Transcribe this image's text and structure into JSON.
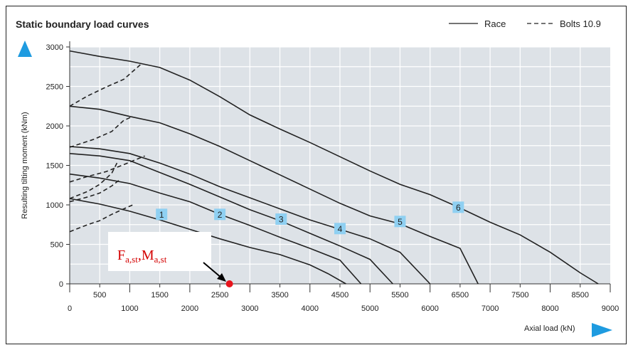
{
  "chart_data": {
    "type": "line",
    "title": "Static boundary load curves",
    "xlabel": "Axial load (kN)",
    "ylabel": "Resulting tilting moment (kNm)",
    "xlim": [
      0,
      9000
    ],
    "ylim": [
      0,
      3000
    ],
    "x_ticks_upper": [
      "500",
      "1500",
      "2500",
      "3500",
      "4500",
      "5500",
      "6500",
      "7500",
      "8500"
    ],
    "x_ticks_lower": [
      "0",
      "1000",
      "2000",
      "3000",
      "4000",
      "5000",
      "6000",
      "7000",
      "8000",
      "9000"
    ],
    "y_ticks": [
      "0",
      "500",
      "1000",
      "1500",
      "2000",
      "2500",
      "3000"
    ],
    "grid": true,
    "legend": {
      "position": "top-right",
      "items": [
        {
          "label": "Race",
          "style": "solid"
        },
        {
          "label": "Bolts 10.9",
          "style": "dashed"
        }
      ]
    },
    "plot_background": "#dde2e7",
    "accent_color": "#1e9be0",
    "series": [
      {
        "name": "1",
        "style": "solid",
        "label_at": [
          1530,
          880
        ],
        "points": [
          [
            0,
            1080
          ],
          [
            500,
            1010
          ],
          [
            1000,
            920
          ],
          [
            1500,
            810
          ],
          [
            2000,
            690
          ],
          [
            2500,
            570
          ],
          [
            3000,
            460
          ],
          [
            3500,
            370
          ],
          [
            4000,
            240
          ],
          [
            4300,
            130
          ],
          [
            4600,
            0
          ]
        ]
      },
      {
        "name": "2",
        "style": "solid",
        "label_at": [
          2500,
          880
        ],
        "points": [
          [
            0,
            1390
          ],
          [
            500,
            1340
          ],
          [
            1000,
            1270
          ],
          [
            1500,
            1150
          ],
          [
            2000,
            1040
          ],
          [
            2500,
            880
          ],
          [
            3000,
            740
          ],
          [
            3500,
            590
          ],
          [
            4000,
            450
          ],
          [
            4500,
            300
          ],
          [
            4850,
            0
          ]
        ]
      },
      {
        "name": "3",
        "style": "solid",
        "label_at": [
          3520,
          820
        ],
        "points": [
          [
            0,
            1650
          ],
          [
            500,
            1620
          ],
          [
            1000,
            1560
          ],
          [
            1500,
            1410
          ],
          [
            2000,
            1260
          ],
          [
            2500,
            1100
          ],
          [
            3000,
            940
          ],
          [
            3500,
            800
          ],
          [
            4000,
            640
          ],
          [
            4500,
            480
          ],
          [
            5000,
            310
          ],
          [
            5380,
            0
          ]
        ]
      },
      {
        "name": "4",
        "style": "solid",
        "label_at": [
          4500,
          700
        ],
        "points": [
          [
            0,
            1740
          ],
          [
            500,
            1710
          ],
          [
            1000,
            1650
          ],
          [
            1500,
            1530
          ],
          [
            2000,
            1390
          ],
          [
            2500,
            1230
          ],
          [
            3000,
            1090
          ],
          [
            3500,
            950
          ],
          [
            4000,
            810
          ],
          [
            4500,
            690
          ],
          [
            5000,
            570
          ],
          [
            5500,
            400
          ],
          [
            6000,
            0
          ]
        ]
      },
      {
        "name": "5",
        "style": "solid",
        "label_at": [
          5500,
          790
        ],
        "points": [
          [
            0,
            2250
          ],
          [
            500,
            2210
          ],
          [
            1000,
            2120
          ],
          [
            1500,
            2040
          ],
          [
            2000,
            1900
          ],
          [
            2500,
            1740
          ],
          [
            3000,
            1560
          ],
          [
            3500,
            1380
          ],
          [
            4000,
            1200
          ],
          [
            4500,
            1020
          ],
          [
            5000,
            860
          ],
          [
            5500,
            760
          ],
          [
            6000,
            600
          ],
          [
            6500,
            450
          ],
          [
            6800,
            0
          ]
        ]
      },
      {
        "name": "6",
        "style": "solid",
        "label_at": [
          6470,
          970
        ],
        "points": [
          [
            0,
            2950
          ],
          [
            500,
            2880
          ],
          [
            1000,
            2820
          ],
          [
            1500,
            2740
          ],
          [
            2000,
            2580
          ],
          [
            2500,
            2370
          ],
          [
            3000,
            2140
          ],
          [
            3500,
            1960
          ],
          [
            4000,
            1790
          ],
          [
            4500,
            1610
          ],
          [
            5000,
            1430
          ],
          [
            5500,
            1260
          ],
          [
            6000,
            1130
          ],
          [
            6500,
            960
          ],
          [
            7000,
            780
          ],
          [
            7500,
            620
          ],
          [
            8000,
            400
          ],
          [
            8500,
            140
          ],
          [
            8800,
            0
          ]
        ]
      },
      {
        "name": "Bolts 1",
        "style": "dashed",
        "points": [
          [
            0,
            660
          ],
          [
            300,
            750
          ],
          [
            500,
            800
          ],
          [
            700,
            880
          ],
          [
            900,
            950
          ],
          [
            1050,
            1000
          ]
        ]
      },
      {
        "name": "Bolts 2",
        "style": "dashed",
        "points": [
          [
            0,
            1040
          ],
          [
            300,
            1100
          ],
          [
            500,
            1150
          ],
          [
            700,
            1240
          ],
          [
            850,
            1330
          ]
        ]
      },
      {
        "name": "Bolts 3",
        "style": "dashed",
        "points": [
          [
            0,
            1080
          ],
          [
            300,
            1170
          ],
          [
            500,
            1260
          ],
          [
            700,
            1400
          ],
          [
            800,
            1550
          ]
        ]
      },
      {
        "name": "Bolts 4",
        "style": "dashed",
        "points": [
          [
            0,
            1290
          ],
          [
            300,
            1360
          ],
          [
            600,
            1420
          ],
          [
            900,
            1510
          ],
          [
            1250,
            1620
          ]
        ]
      },
      {
        "name": "Bolts 5",
        "style": "dashed",
        "points": [
          [
            0,
            1730
          ],
          [
            400,
            1830
          ],
          [
            700,
            1930
          ],
          [
            900,
            2070
          ],
          [
            1050,
            2120
          ]
        ]
      },
      {
        "name": "Bolts 6",
        "style": "dashed",
        "points": [
          [
            0,
            2250
          ],
          [
            300,
            2380
          ],
          [
            600,
            2490
          ],
          [
            900,
            2590
          ],
          [
            1200,
            2790
          ]
        ]
      }
    ],
    "annotations": [
      {
        "text_main_1": "F",
        "text_sub_1": "a,st",
        "separator": ",",
        "text_main_2": "M",
        "text_sub_2": "a,st",
        "point": [
          2660,
          0
        ],
        "point_color": "#e8141c",
        "text_color": "#d40000"
      }
    ]
  }
}
